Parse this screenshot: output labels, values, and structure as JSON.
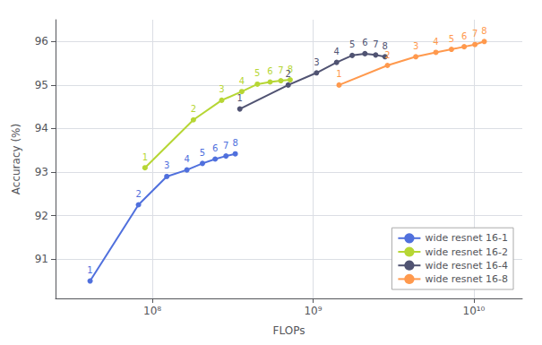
{
  "chart_data": {
    "type": "line",
    "xlabel": "FLOPs",
    "ylabel": "Accuracy (%)",
    "log": "x",
    "xlim": [
      25000000.0,
      20000000000.0
    ],
    "xticks": [
      {
        "value": 100000000.0,
        "label": "10⁸"
      },
      {
        "value": 1000000000.0,
        "label": "10⁹"
      },
      {
        "value": 10000000000.0,
        "label": "10¹⁰"
      }
    ],
    "ylim": [
      90.1,
      96.5
    ],
    "yticks": [
      91,
      92,
      93,
      94,
      95,
      96
    ],
    "grid": true,
    "legend": "lower right",
    "marker": "circle",
    "series": [
      {
        "name": "wide resnet 16-1",
        "x": [
          41000000.0,
          82000000.0,
          123000000.0,
          164000000.0,
          205000000.0,
          246000000.0,
          287000000.0,
          328000000.0
        ],
        "values": [
          90.5,
          92.25,
          92.9,
          93.05,
          93.2,
          93.3,
          93.37,
          93.42
        ],
        "annotations": [
          "1",
          "2",
          "3",
          "4",
          "5",
          "6",
          "7",
          "8"
        ]
      },
      {
        "name": "wide resnet 16-2",
        "x": [
          90000000.0,
          180000000.0,
          270000000.0,
          360000000.0,
          450000000.0,
          540000000.0,
          630000000.0,
          720000000.0
        ],
        "values": [
          93.1,
          94.2,
          94.65,
          94.85,
          95.02,
          95.07,
          95.1,
          95.12
        ],
        "annotations": [
          "1",
          "2",
          "3",
          "4",
          "5",
          "6",
          "7",
          "8"
        ]
      },
      {
        "name": "wide resnet 16-4",
        "x": [
          350000000.0,
          700000000.0,
          1050000000.0,
          1400000000.0,
          1750000000.0,
          2100000000.0,
          2450000000.0,
          2800000000.0
        ],
        "values": [
          94.45,
          95.0,
          95.28,
          95.52,
          95.68,
          95.72,
          95.69,
          95.65
        ],
        "annotations": [
          "1",
          "2",
          "3",
          "4",
          "5",
          "6",
          "7",
          "8"
        ]
      },
      {
        "name": "wide resnet 16-8",
        "x": [
          1450000000.0,
          2900000000.0,
          4350000000.0,
          5800000000.0,
          7250000000.0,
          8700000000.0,
          10150000000.0,
          11600000000.0
        ],
        "values": [
          95.0,
          95.45,
          95.65,
          95.75,
          95.82,
          95.88,
          95.93,
          96.0
        ],
        "annotations": [
          "1",
          "2",
          "3",
          "4",
          "5",
          "6",
          "7",
          "8"
        ]
      }
    ]
  }
}
